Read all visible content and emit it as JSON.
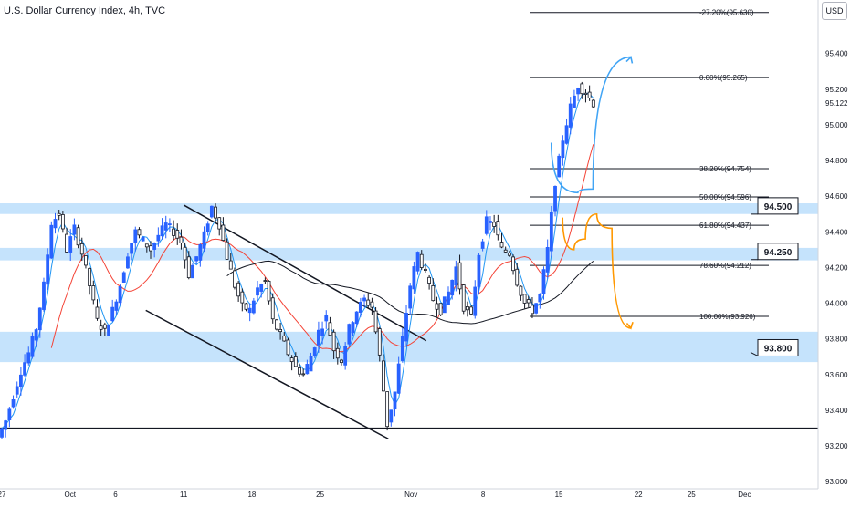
{
  "header": {
    "title": "U.S. Dollar Currency Index, 4h, TVC",
    "currency": "USD"
  },
  "chart_data": {
    "type": "candlestick",
    "y_axis": {
      "range": [
        92.96,
        95.7
      ],
      "ticks": [
        "95.400",
        "95.200",
        "95.000",
        "94.800",
        "94.600",
        "94.400",
        "94.200",
        "94.000",
        "93.800",
        "93.600",
        "93.400",
        "93.200",
        "93.000"
      ],
      "tick_values": [
        95.4,
        95.2,
        95.0,
        94.8,
        94.6,
        94.4,
        94.2,
        94.0,
        93.8,
        93.6,
        93.4,
        93.2,
        93.0
      ],
      "current_price": "95.122",
      "current_value": 95.122
    },
    "x_axis": {
      "ticks": [
        {
          "label": "27",
          "bar": 0
        },
        {
          "label": "Oct",
          "bar": 18
        },
        {
          "label": "6",
          "bar": 30
        },
        {
          "label": "11",
          "bar": 48
        },
        {
          "label": "18",
          "bar": 66
        },
        {
          "label": "25",
          "bar": 84
        },
        {
          "label": "Nov",
          "bar": 108
        },
        {
          "label": "8",
          "bar": 127
        },
        {
          "label": "15",
          "bar": 147
        },
        {
          "label": "22",
          "bar": 168
        },
        {
          "label": "25",
          "bar": 182
        },
        {
          "label": "Dec",
          "bar": 196
        }
      ]
    },
    "price_path": [
      93.25,
      93.34,
      93.48,
      93.62,
      93.72,
      93.86,
      94.1,
      94.45,
      94.5,
      94.3,
      94.42,
      94.28,
      94.1,
      93.9,
      93.84,
      93.96,
      94.1,
      94.28,
      94.4,
      94.35,
      94.3,
      94.38,
      94.44,
      94.4,
      94.34,
      94.16,
      94.26,
      94.38,
      94.54,
      94.44,
      94.26,
      94.1,
      93.98,
      93.96,
      94.08,
      94.12,
      93.9,
      93.82,
      93.72,
      93.64,
      93.6,
      93.7,
      93.84,
      93.92,
      93.74,
      93.68,
      93.86,
      93.96,
      94.02,
      93.98,
      93.7,
      93.32,
      93.5,
      93.8,
      94.1,
      94.28,
      94.16,
      94.02,
      93.96,
      94.06,
      94.2,
      93.98,
      93.92,
      94.28,
      94.46,
      94.44,
      94.3,
      94.28,
      94.12,
      94.0,
      93.96,
      94.04,
      94.3,
      94.68,
      94.92,
      95.1,
      95.22,
      95.18,
      95.12
    ],
    "resistance_zones": [
      {
        "label": "94.500",
        "low": 94.5,
        "high": 94.56
      },
      {
        "label": "94.250",
        "low": 94.24,
        "high": 94.31
      },
      {
        "label": "93.800",
        "low": 93.67,
        "high": 93.84
      }
    ],
    "support_line": 93.3,
    "fibonacci": [
      {
        "label": "-27.20%(95.630)",
        "value": 95.63
      },
      {
        "label": "0.00%(95.265)",
        "value": 95.265
      },
      {
        "label": "38.20%(94.754)",
        "value": 94.754
      },
      {
        "label": "50.00%(94.596)",
        "value": 94.596
      },
      {
        "label": "61.80%(94.437)",
        "value": 94.437
      },
      {
        "label": "78.60%(94.212)",
        "value": 94.212
      },
      {
        "label": "100.00%(93.926)",
        "value": 93.926
      }
    ],
    "channel": {
      "upper": [
        {
          "bar": 48,
          "value": 94.55
        },
        {
          "bar": 112,
          "value": 93.79
        }
      ],
      "lower": [
        {
          "bar": 38,
          "value": 93.96
        },
        {
          "bar": 102,
          "value": 93.24
        }
      ]
    },
    "scenario_arrows": {
      "bullish": [
        {
          "bar": 145,
          "value": 94.9
        },
        {
          "bar": 152,
          "value": 94.62
        },
        {
          "bar": 156,
          "value": 94.64
        },
        {
          "bar": 166,
          "value": 95.38
        }
      ],
      "bearish": [
        {
          "bar": 148,
          "value": 94.48
        },
        {
          "bar": 151,
          "value": 94.3
        },
        {
          "bar": 154,
          "value": 94.36
        },
        {
          "bar": 157,
          "value": 94.5
        },
        {
          "bar": 161,
          "value": 94.42
        },
        {
          "bar": 166,
          "value": 93.86
        }
      ]
    },
    "series": [
      {
        "color": "#2196f3"
      },
      {
        "color": "#f44336"
      },
      {
        "color": "#131722"
      }
    ],
    "colors": {
      "candle_up": "#2962ff",
      "candle_down": "#131722",
      "zone": "#bbdefb",
      "arrow_blue": "#42a5f5",
      "arrow_orange": "#ff9800"
    }
  }
}
